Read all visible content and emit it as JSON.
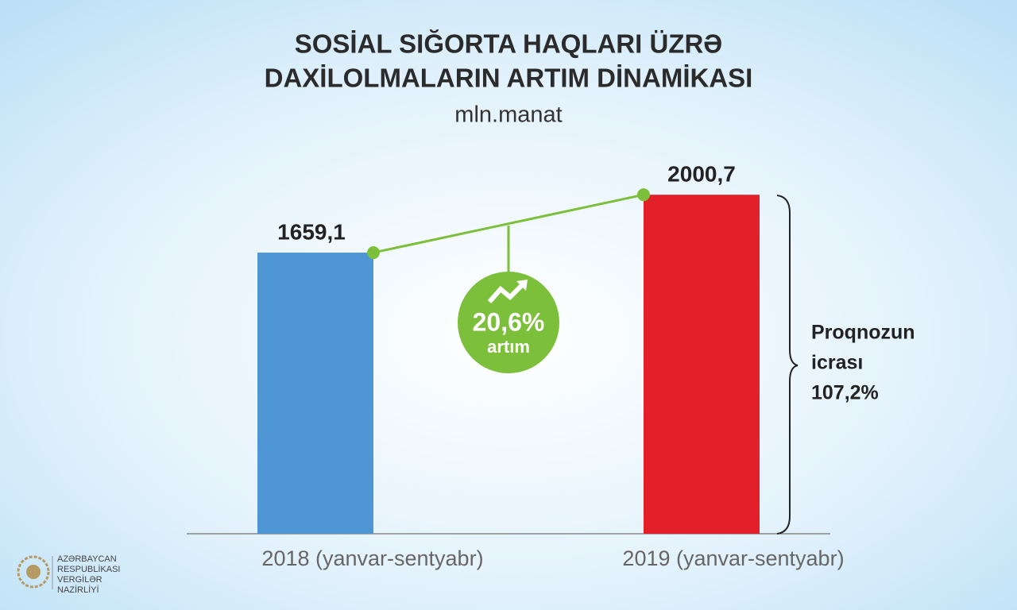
{
  "chart_data": {
    "type": "bar",
    "title_lines": [
      "SOSİAL SIĞORTA HAQLARI ÜZRƏ",
      "DAXİLOLMALARIN ARTIM DİNAMİKASI"
    ],
    "subtitle": "mln.manat",
    "categories": [
      "2018 (yanvar-sentyabr)",
      "2019 (yanvar-sentyabr)"
    ],
    "values": [
      1659.1,
      2000.7
    ],
    "value_labels": [
      "1659,1",
      "2000,7"
    ],
    "colors": [
      "#4f96d4",
      "#e3202a"
    ],
    "ylim": [
      0,
      2100
    ],
    "annotations": {
      "growth": "20,6%",
      "growth_label": "artım",
      "forecast": [
        "Proqnozun",
        "icrası",
        "107,2%"
      ]
    }
  },
  "logo": {
    "lines": [
      "AZƏRBAYCAN",
      "RESPUBLİKASI",
      "VERGİLƏR",
      "NAZİRLİYİ"
    ]
  }
}
